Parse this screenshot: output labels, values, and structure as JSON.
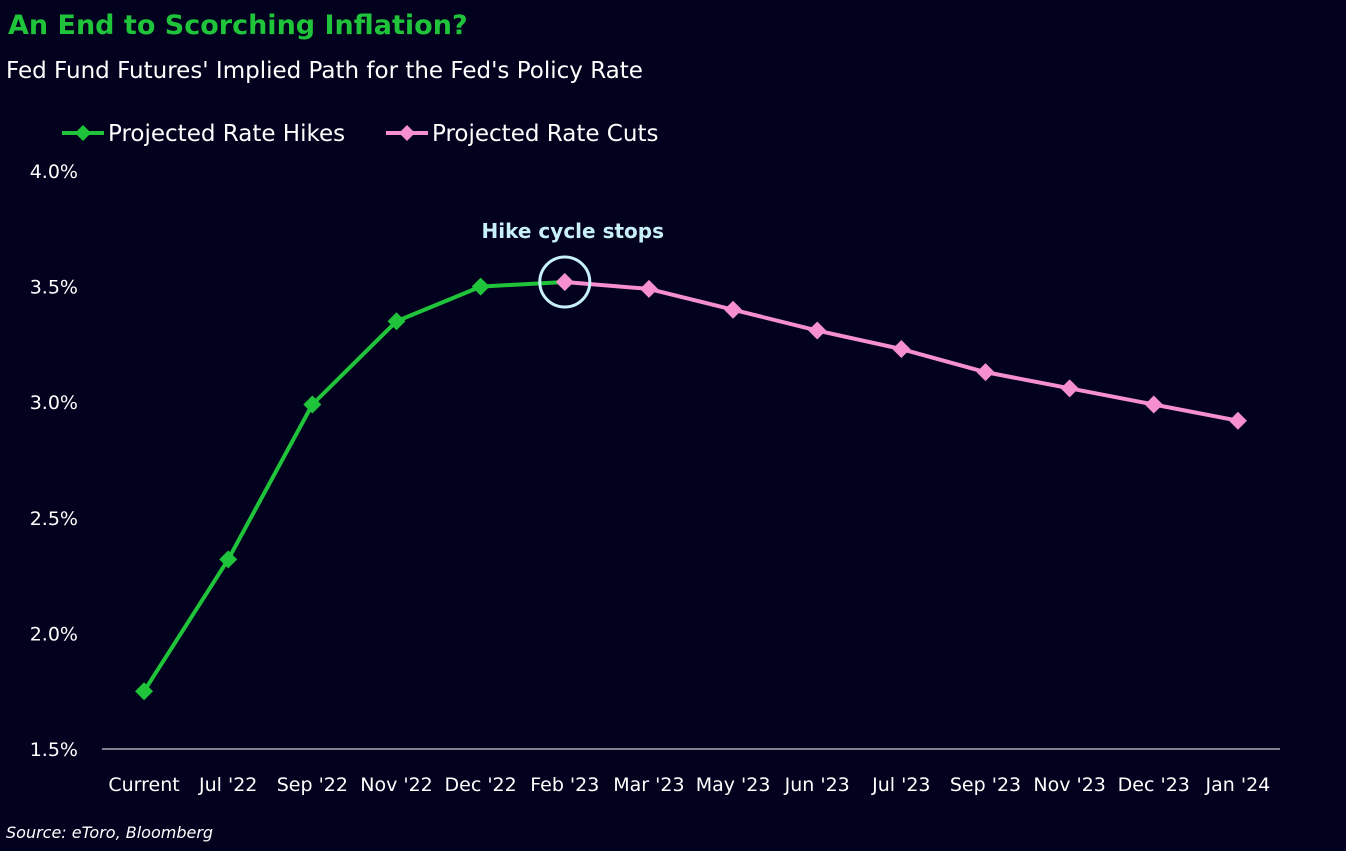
{
  "title": "An End to Scorching Inflation?",
  "subtitle": "Fed Fund Futures' Implied Path for the Fed's Policy Rate",
  "source": "Source: eToro, Bloomberg",
  "colors": {
    "background": "#02021e",
    "hikes": "#1fc43a",
    "cuts": "#f58fcf",
    "annotation": "#c8f0f8",
    "axis": "#ffffff"
  },
  "chart_data": {
    "type": "line",
    "categories": [
      "Current",
      "Jul '22",
      "Sep '22",
      "Nov '22",
      "Dec '22",
      "Feb '23",
      "Mar '23",
      "May '23",
      "Jun '23",
      "Jul '23",
      "Sep '23",
      "Nov '23",
      "Dec '23",
      "Jan '24"
    ],
    "series": [
      {
        "name": "Projected Rate Hikes",
        "color": "#1fc43a",
        "values": [
          1.75,
          2.32,
          2.99,
          3.35,
          3.5,
          3.52,
          null,
          null,
          null,
          null,
          null,
          null,
          null,
          null
        ]
      },
      {
        "name": "Projected Rate Cuts",
        "color": "#f58fcf",
        "values": [
          null,
          null,
          null,
          null,
          null,
          3.52,
          3.49,
          3.4,
          3.31,
          3.23,
          3.13,
          3.06,
          2.99,
          2.92
        ]
      }
    ],
    "ylim": [
      1.5,
      4.0
    ],
    "yticks": [
      "1.5%",
      "2.0%",
      "2.5%",
      "3.0%",
      "3.5%",
      "4.0%"
    ],
    "ytick_values": [
      1.5,
      2.0,
      2.5,
      3.0,
      3.5,
      4.0
    ],
    "xlabel": "",
    "ylabel": "",
    "grid": false,
    "legend": "top-left",
    "annotation": {
      "text": "Hike cycle stops",
      "category": "Feb '23",
      "value": 3.52
    }
  }
}
